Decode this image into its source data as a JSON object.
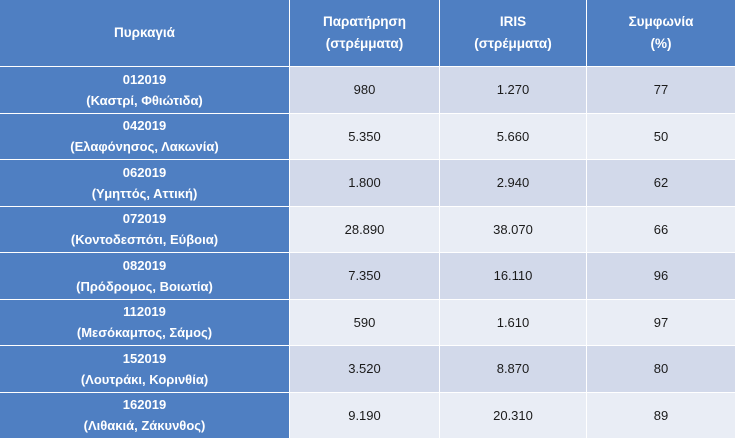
{
  "headers": {
    "fire": [
      "Πυρκαγιά"
    ],
    "observation": [
      "Παρατήρηση",
      "(στρέμματα)"
    ],
    "iris": [
      "IRIS",
      "(στρέμματα)"
    ],
    "agreement": [
      "Συμφωνία",
      "(%)"
    ]
  },
  "rows": [
    {
      "code": "012019",
      "place": "(Καστρί, Φθιώτιδα)",
      "observation": "980",
      "iris": "1.270",
      "agreement": "77"
    },
    {
      "code": "042019",
      "place": "(Ελαφόνησος, Λακωνία)",
      "observation": "5.350",
      "iris": "5.660",
      "agreement": "50"
    },
    {
      "code": "062019",
      "place": "(Υμηττός, Αττική)",
      "observation": "1.800",
      "iris": "2.940",
      "agreement": "62"
    },
    {
      "code": "072019",
      "place": "(Κοντοδεσπότι, Εύβοια)",
      "observation": "28.890",
      "iris": "38.070",
      "agreement": "66"
    },
    {
      "code": "082019",
      "place": "(Πρόδρομος, Βοιωτία)",
      "observation": "7.350",
      "iris": "16.110",
      "agreement": "96"
    },
    {
      "code": "112019",
      "place": "(Μεσόκαμπος, Σάμος)",
      "observation": "590",
      "iris": "1.610",
      "agreement": "97"
    },
    {
      "code": "152019",
      "place": "(Λουτράκι, Κορινθία)",
      "observation": "3.520",
      "iris": "8.870",
      "agreement": "80"
    },
    {
      "code": "162019",
      "place": "(Λιθακιά, Ζάκυνθος)",
      "observation": "9.190",
      "iris": "20.310",
      "agreement": "89"
    }
  ],
  "colors": {
    "header_bg": "#4f7fc2",
    "row_light": "#e9edf5",
    "row_dark": "#d2d9ea"
  }
}
